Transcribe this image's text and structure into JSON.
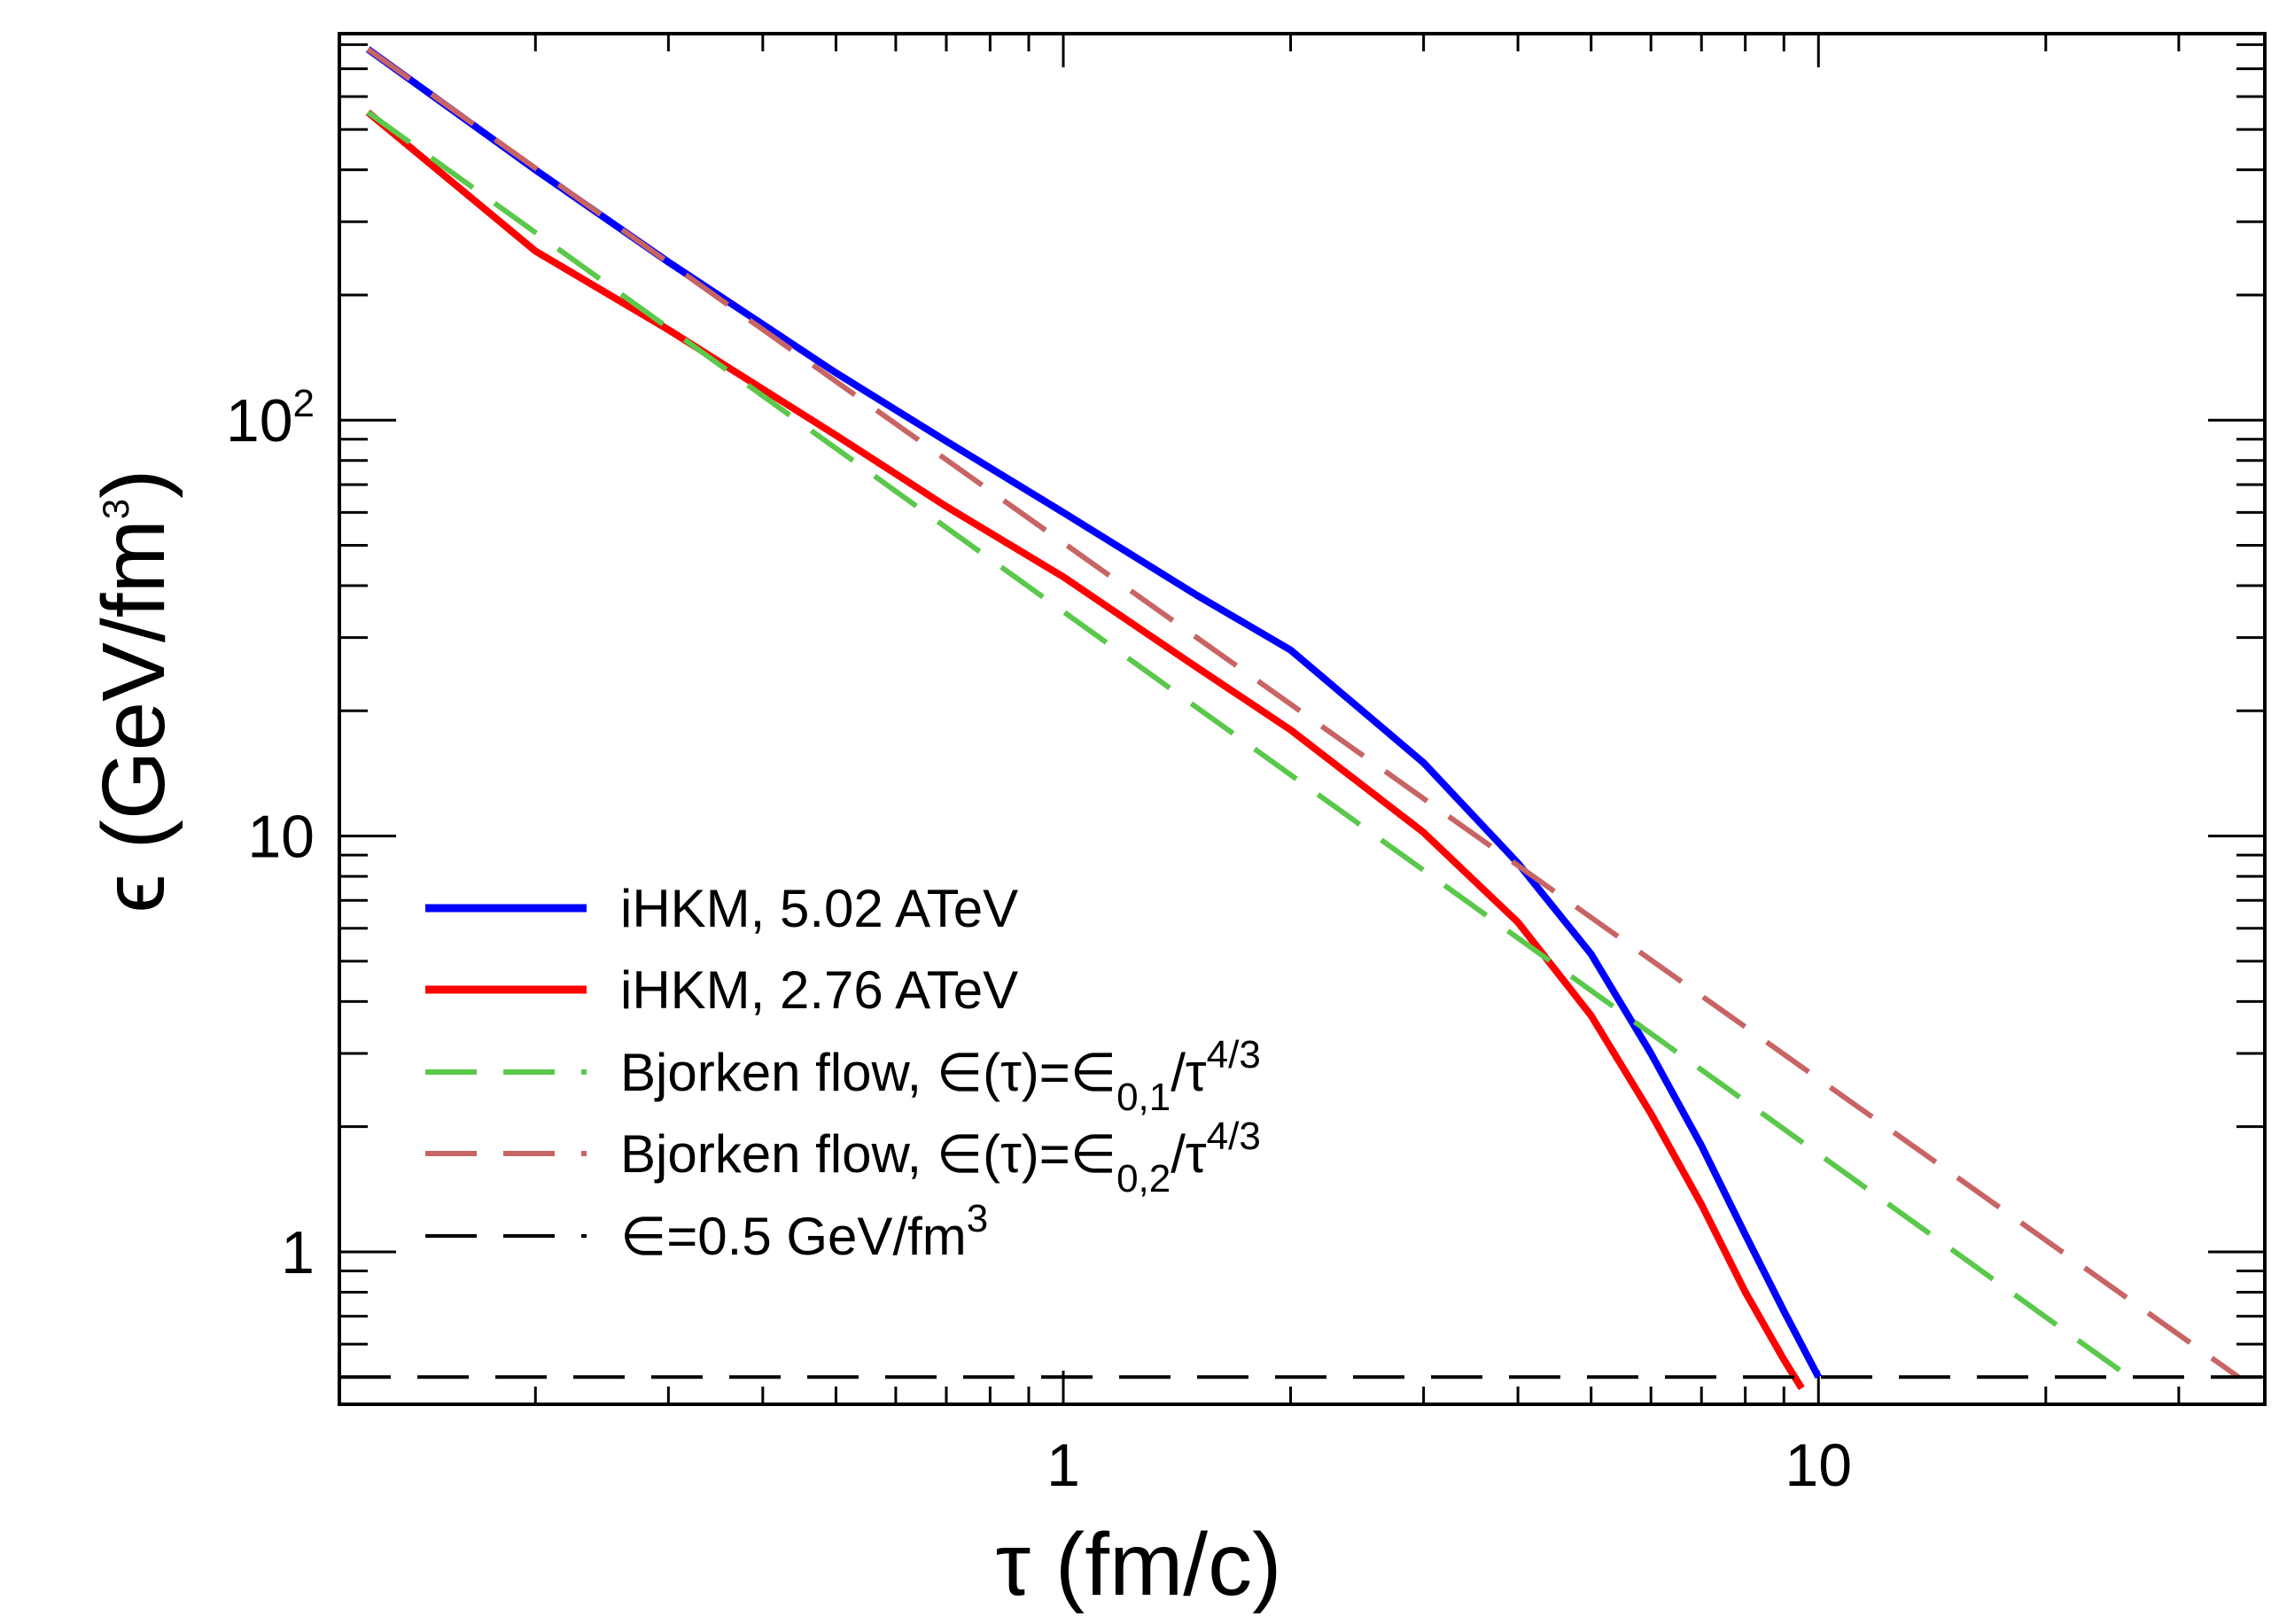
{
  "chart_data": {
    "type": "line",
    "x_scale": "log",
    "y_scale": "log",
    "xlabel": "τ (fm/c)",
    "ylabel_main": "ϵ (GeV/fm",
    "ylabel_sup": "3",
    "ylabel_close": ")",
    "xlim": [
      0.11,
      39
    ],
    "ylim": [
      0.43,
      850
    ],
    "x_major_ticks": [
      {
        "value": 1,
        "label": "1"
      },
      {
        "value": 10,
        "label": "10"
      }
    ],
    "y_major_ticks": [
      {
        "value": 1,
        "base": "1",
        "sup": ""
      },
      {
        "value": 10,
        "base": "10",
        "sup": ""
      },
      {
        "value": 100,
        "base": "10",
        "sup": "2"
      }
    ],
    "series": [
      {
        "name": "iHKM, 5.02 ATeV",
        "color": "#0000ff",
        "dash": "solid",
        "x": [
          0.12,
          0.2,
          0.3,
          0.5,
          0.7,
          1.0,
          1.5,
          2.0,
          3.0,
          4.0,
          5.0,
          6.0,
          7.0,
          8.0,
          9.0,
          10.0
        ],
        "y": [
          780,
          400,
          240,
          130,
          89,
          60,
          38,
          28,
          15,
          8.6,
          5.2,
          3.0,
          1.8,
          1.1,
          0.72,
          0.5
        ]
      },
      {
        "name": "iHKM, 2.76 ATeV",
        "color": "#ff0000",
        "dash": "solid",
        "x": [
          0.12,
          0.2,
          0.3,
          0.5,
          0.7,
          1.0,
          1.5,
          2.0,
          3.0,
          4.0,
          5.0,
          6.0,
          7.0,
          8.0,
          9.0,
          9.5
        ],
        "y": [
          550,
          255,
          165,
          92,
          62,
          42,
          25.5,
          18,
          10.2,
          6.2,
          3.7,
          2.15,
          1.3,
          0.8,
          0.55,
          0.47
        ]
      },
      {
        "name": "Bjorken flow, ∈(τ)=∈0,1/τ4/3",
        "name_pre": "Bjorken flow, ∈(τ)=∈",
        "name_sub": "0,1",
        "name_mid": "/τ",
        "name_sup": "4/3",
        "color": "#5ac84b",
        "dash": "long",
        "x": [
          0.12,
          25.8
        ],
        "y": [
          550,
          0.5
        ]
      },
      {
        "name": "Bjorken flow, ∈(τ)=∈0,2/τ4/3",
        "name_pre": "Bjorken flow, ∈(τ)=∈",
        "name_sub": "0,2",
        "name_mid": "/τ",
        "name_sup": "4/3",
        "color": "#c86464",
        "dash": "long",
        "x": [
          0.12,
          36
        ],
        "y": [
          780,
          0.5
        ]
      },
      {
        "name": "∈=0.5 GeV/fm3",
        "name_pre": "∈=0.5 GeV/fm",
        "name_sup": "3",
        "color": "#000000",
        "dash": "long",
        "x": [
          0.11,
          39
        ],
        "y": [
          0.5,
          0.5
        ]
      }
    ]
  }
}
